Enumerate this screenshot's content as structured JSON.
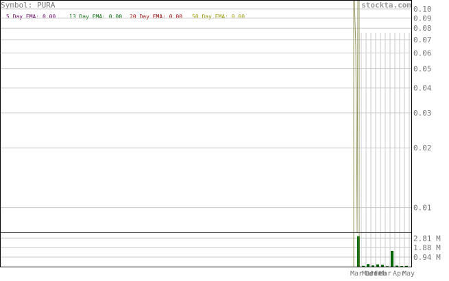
{
  "header": {
    "symbol_label": "Symbol: PURA",
    "watermark": "stockta.com"
  },
  "legend": [
    {
      "label": "5 Day EMA: 0.00",
      "color": "#660066"
    },
    {
      "label": "13 Day EMA: 0.00",
      "color": "#006600"
    },
    {
      "label": "20 Day EMA: 0.00",
      "color": "#990000"
    },
    {
      "label": "50 Day EMA: 0.00",
      "color": "#999900"
    }
  ],
  "colors": {
    "grid": "#c8c8c8",
    "axis_text": "#777777",
    "frame": "#000000",
    "price_line": "#999966",
    "volume_bar": "#006600"
  },
  "chart_data": [
    {
      "type": "line",
      "title": "",
      "y_scale": "log",
      "ylim": [
        0.0075,
        0.11
      ],
      "y_ticks": [
        0.1,
        0.09,
        0.08,
        0.07,
        0.06,
        0.05,
        0.04,
        0.03,
        0.02,
        0.01
      ],
      "y_tick_labels": [
        "0.10",
        "0.09",
        "0.08",
        "0.07",
        "0.06",
        "0.05",
        "0.04",
        "0.03",
        "0.02",
        "0.01"
      ],
      "x_tick_labels": [
        "Mar",
        "Mar",
        "Dec",
        "Jan",
        "Feb",
        "Mar",
        "Apr",
        "May"
      ],
      "grid": true,
      "series": [
        {
          "values": [
            0.11,
            0.065,
            0.022,
            0.0075,
            0.11
          ]
        }
      ]
    },
    {
      "type": "bar",
      "title": "",
      "ylim": [
        0,
        3.3
      ],
      "y_ticks": [
        2.81,
        1.88,
        0.94
      ],
      "y_tick_labels": [
        "2.81 M",
        "1.88 M",
        "0.94 M"
      ],
      "x_tick_labels": [
        "Mar",
        "Mar",
        "Dec",
        "Jan",
        "Feb",
        "Mar",
        "Apr",
        "May"
      ],
      "values": [
        3.0,
        0.08,
        0.25,
        0.12,
        0.22,
        0.18,
        0.05,
        1.55,
        0.1,
        0.06,
        0.08
      ],
      "grid": true
    }
  ]
}
